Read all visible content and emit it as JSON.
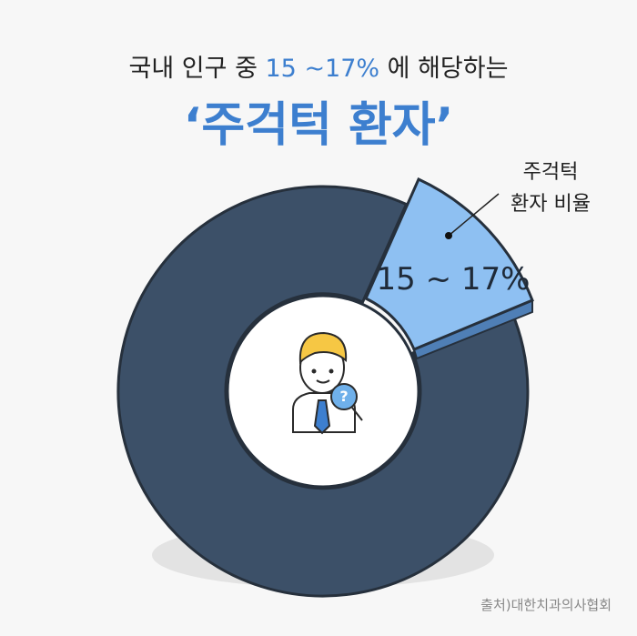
{
  "header": {
    "line1_before": "국내 인구 중 ",
    "line1_highlight": "15 ~17%",
    "line1_after": " 에 해당하는",
    "title": "‘주걱턱 환자’"
  },
  "segment": {
    "label_line1": "주걱턱",
    "label_line2": "환자 비율",
    "value_label": "15 ~ 17%"
  },
  "source": "출처)대한치과의사협회"
}
